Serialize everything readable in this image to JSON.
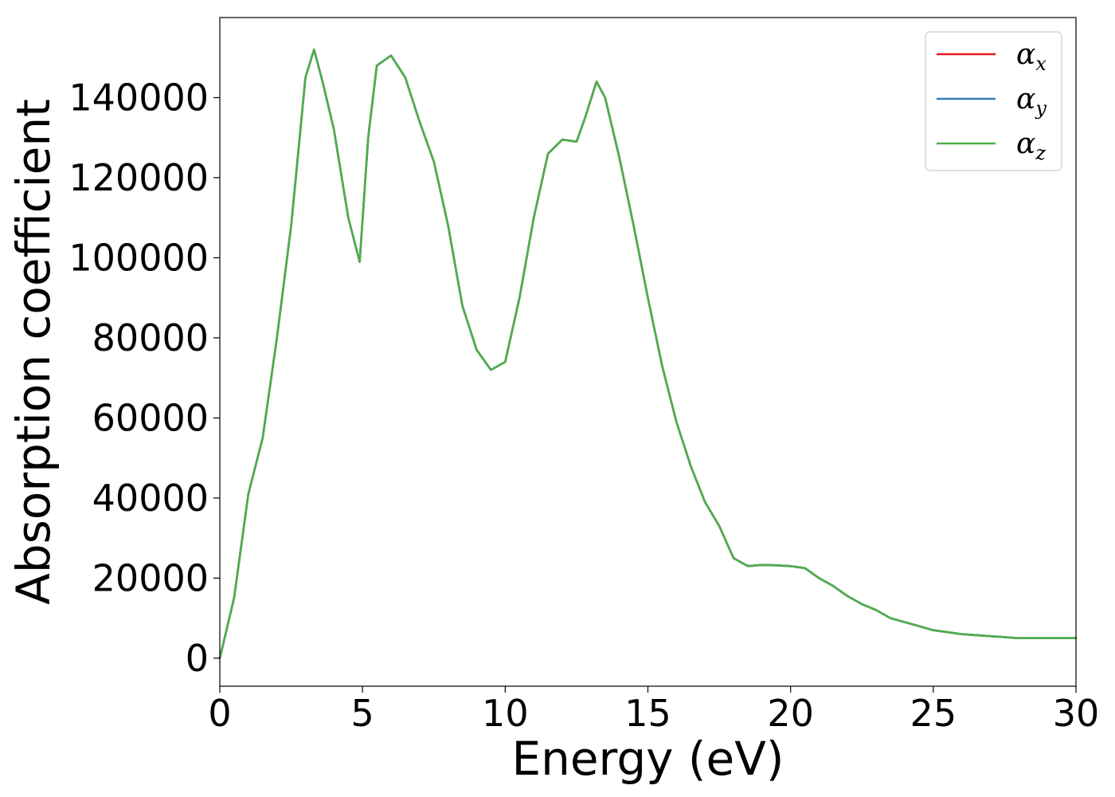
{
  "chart_data": {
    "type": "line",
    "title": "",
    "xlabel": "Energy (eV)",
    "ylabel": "Absorption coefficient",
    "xlim": [
      0,
      30
    ],
    "ylim": [
      -7000,
      160000
    ],
    "xticks": [
      0,
      5,
      10,
      15,
      20,
      25,
      30
    ],
    "yticks": [
      0,
      20000,
      40000,
      60000,
      80000,
      100000,
      120000,
      140000
    ],
    "grid": false,
    "legend_position": "top-right",
    "legend": [
      {
        "base": "α",
        "sub": "x",
        "color": "#e41a1c"
      },
      {
        "base": "α",
        "sub": "y",
        "color": "#377eb8"
      },
      {
        "base": "α",
        "sub": "z",
        "color": "#4daf4a"
      }
    ],
    "x": [
      0,
      0.5,
      1.0,
      1.5,
      2.0,
      2.5,
      3.0,
      3.3,
      3.6,
      4.0,
      4.5,
      4.9,
      5.2,
      5.5,
      6.0,
      6.5,
      7.0,
      7.5,
      8.0,
      8.5,
      9.0,
      9.5,
      10.0,
      10.5,
      11.0,
      11.5,
      12.0,
      12.5,
      12.8,
      13.2,
      13.5,
      14.0,
      14.5,
      15.0,
      15.5,
      16.0,
      16.5,
      17.0,
      17.5,
      18.0,
      18.5,
      19.0,
      19.5,
      20.0,
      20.5,
      21.0,
      21.5,
      22.0,
      22.5,
      23.0,
      23.5,
      24.0,
      24.5,
      25.0,
      25.5,
      26.0,
      27.0,
      28.0,
      29.0,
      30.0
    ],
    "series": [
      {
        "name": "α_x",
        "color": "#e41a1c",
        "values": [
          0,
          15000,
          41000,
          55000,
          80000,
          108000,
          145000,
          152000,
          144000,
          132000,
          110000,
          99000,
          130000,
          148000,
          150500,
          145000,
          134000,
          124000,
          108000,
          88000,
          77000,
          72000,
          74000,
          90000,
          110000,
          126000,
          129500,
          129000,
          135000,
          144000,
          140000,
          125000,
          108000,
          90000,
          73000,
          59000,
          48000,
          39000,
          33000,
          25000,
          23000,
          23300,
          23200,
          23000,
          22500,
          20000,
          18000,
          15500,
          13500,
          12000,
          10000,
          9000,
          8000,
          7000,
          6500,
          6000,
          5500,
          5000,
          5000,
          5000
        ]
      },
      {
        "name": "α_y",
        "color": "#377eb8",
        "values": [
          0,
          15000,
          41000,
          55000,
          80000,
          108000,
          145000,
          152000,
          144000,
          132000,
          110000,
          99000,
          130000,
          148000,
          150500,
          145000,
          134000,
          124000,
          108000,
          88000,
          77000,
          72000,
          74000,
          90000,
          110000,
          126000,
          129500,
          129000,
          135000,
          144000,
          140000,
          125000,
          108000,
          90000,
          73000,
          59000,
          48000,
          39000,
          33000,
          25000,
          23000,
          23300,
          23200,
          23000,
          22500,
          20000,
          18000,
          15500,
          13500,
          12000,
          10000,
          9000,
          8000,
          7000,
          6500,
          6000,
          5500,
          5000,
          5000,
          5000
        ]
      },
      {
        "name": "α_z",
        "color": "#4daf4a",
        "values": [
          0,
          15000,
          41000,
          55000,
          80000,
          108000,
          145000,
          152000,
          144000,
          132000,
          110000,
          99000,
          130000,
          148000,
          150500,
          145000,
          134000,
          124000,
          108000,
          88000,
          77000,
          72000,
          74000,
          90000,
          110000,
          126000,
          129500,
          129000,
          135000,
          144000,
          140000,
          125000,
          108000,
          90000,
          73000,
          59000,
          48000,
          39000,
          33000,
          25000,
          23000,
          23300,
          23200,
          23000,
          22500,
          20000,
          18000,
          15500,
          13500,
          12000,
          10000,
          9000,
          8000,
          7000,
          6500,
          6000,
          5500,
          5000,
          5000,
          5000
        ]
      }
    ]
  }
}
